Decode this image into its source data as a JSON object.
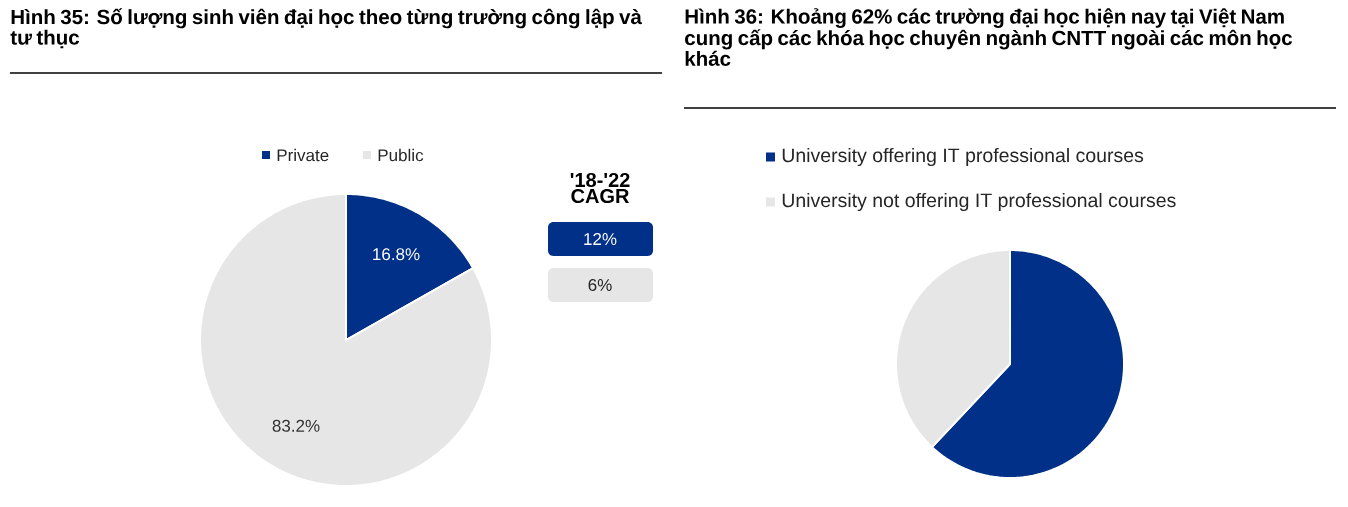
{
  "chart_data": [
    {
      "type": "pie",
      "title": "Hình 35: Số lượng sinh viên đại học theo từng trường công lập và tư thục",
      "categories": [
        "Private",
        "Public"
      ],
      "values": [
        16.8,
        83.2
      ],
      "colors": [
        "#003087",
        "#e6e6e6"
      ],
      "value_labels": [
        "16.8%",
        "83.2%"
      ],
      "legend": "top",
      "annotations": [
        "'18-'22 CAGR",
        "12%",
        "6%"
      ]
    },
    {
      "type": "pie",
      "title": "Hình 36: Khoảng 62% các trường đại học hiện nay tại Việt Nam cung cấp các khóa học chuyên ngành CNTT ngoài các môn học khác",
      "categories": [
        "University offering IT professional courses",
        "University not offering IT professional courses"
      ],
      "values": [
        62,
        38
      ],
      "colors": [
        "#003087",
        "#e6e6e6"
      ],
      "legend": "top"
    }
  ]
}
